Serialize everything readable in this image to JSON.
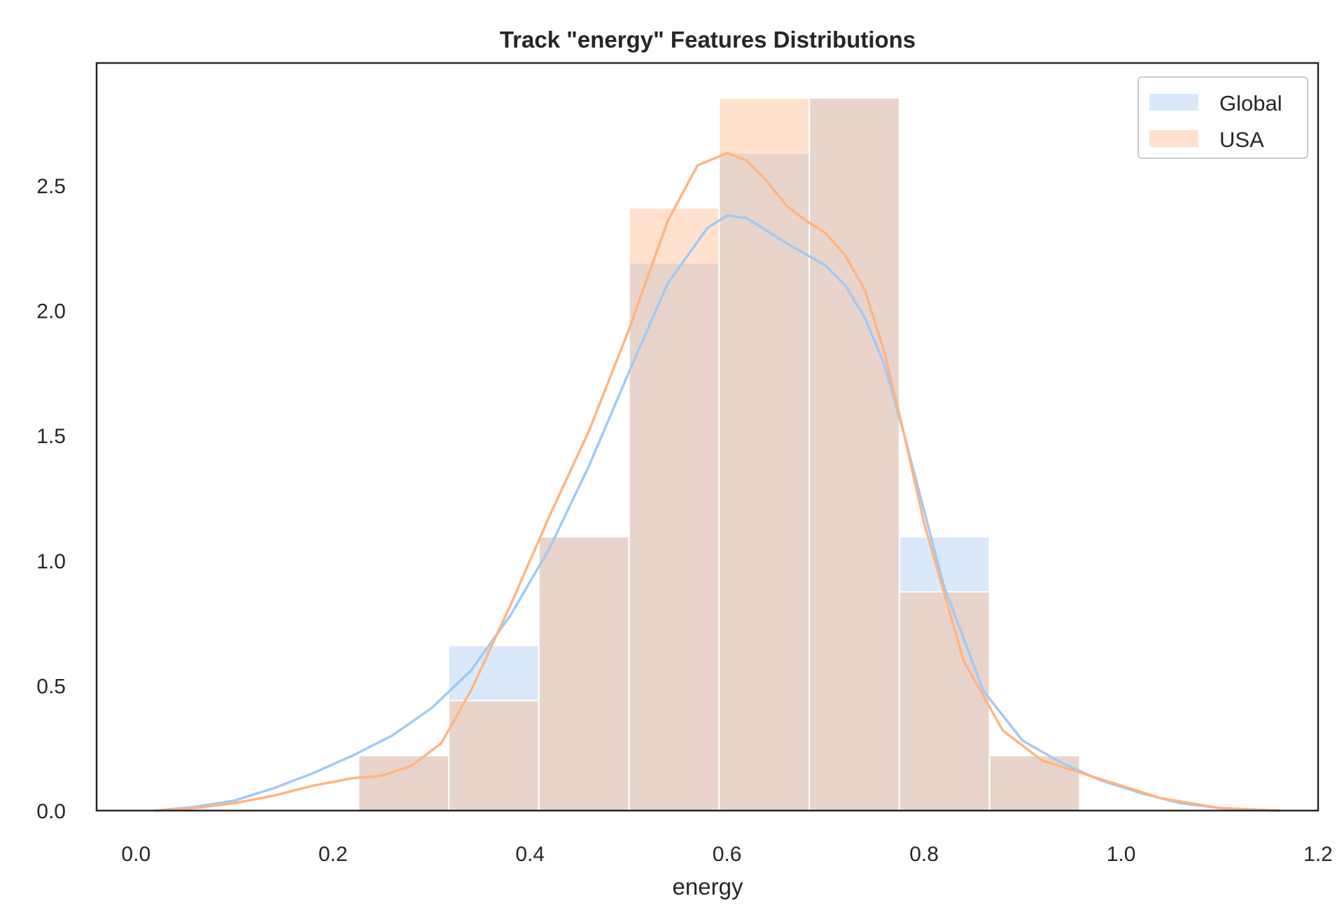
{
  "chart_data": {
    "type": "histogram",
    "title": "Track \"energy\" Features Distributions",
    "xlabel": "energy",
    "ylabel": "",
    "xlim": [
      -0.04,
      1.2
    ],
    "ylim": [
      0,
      2.99
    ],
    "x_ticks": [
      "0.0",
      "0.2",
      "0.4",
      "0.6",
      "0.8",
      "1.0",
      "1.2"
    ],
    "x_tick_values": [
      0.0,
      0.2,
      0.4,
      0.6,
      0.8,
      1.0,
      1.2
    ],
    "y_ticks": [
      "0.0",
      "0.5",
      "1.0",
      "1.5",
      "2.0",
      "2.5"
    ],
    "y_tick_values": [
      0.0,
      0.5,
      1.0,
      1.5,
      2.0,
      2.5
    ],
    "grid": false,
    "legend_position": "top-right",
    "bins": [
      0.226,
      0.3175,
      0.409,
      0.5005,
      0.592,
      0.6835,
      0.775,
      0.8665,
      0.958
    ],
    "series": [
      {
        "name": "Global",
        "color": "#a1c9f4",
        "values": [
          0.22,
          0.66,
          1.095,
          2.19,
          2.63,
          2.85,
          1.095,
          0.22
        ],
        "kde_x": [
          0.02,
          0.06,
          0.1,
          0.14,
          0.18,
          0.22,
          0.26,
          0.3,
          0.34,
          0.38,
          0.42,
          0.46,
          0.5,
          0.54,
          0.58,
          0.6,
          0.62,
          0.64,
          0.66,
          0.7,
          0.72,
          0.74,
          0.76,
          0.78,
          0.82,
          0.86,
          0.9,
          0.94,
          0.98,
          1.02,
          1.06,
          1.1,
          1.16
        ],
        "kde_y": [
          0.0,
          0.015,
          0.04,
          0.09,
          0.15,
          0.22,
          0.3,
          0.41,
          0.56,
          0.78,
          1.05,
          1.38,
          1.75,
          2.11,
          2.33,
          2.38,
          2.37,
          2.32,
          2.27,
          2.18,
          2.1,
          1.97,
          1.78,
          1.5,
          0.9,
          0.48,
          0.28,
          0.19,
          0.12,
          0.07,
          0.03,
          0.01,
          0.0
        ]
      },
      {
        "name": "USA",
        "color": "#ffb482",
        "values": [
          0.22,
          0.44,
          1.095,
          2.41,
          2.85,
          2.85,
          0.875,
          0.22
        ],
        "kde_x": [
          0.02,
          0.06,
          0.1,
          0.14,
          0.18,
          0.22,
          0.25,
          0.28,
          0.31,
          0.34,
          0.38,
          0.42,
          0.46,
          0.5,
          0.54,
          0.57,
          0.6,
          0.62,
          0.64,
          0.66,
          0.68,
          0.7,
          0.72,
          0.74,
          0.76,
          0.78,
          0.8,
          0.84,
          0.88,
          0.92,
          0.96,
          1.0,
          1.04,
          1.1,
          1.16
        ],
        "kde_y": [
          0.0,
          0.01,
          0.03,
          0.06,
          0.1,
          0.13,
          0.14,
          0.18,
          0.27,
          0.48,
          0.82,
          1.18,
          1.52,
          1.92,
          2.36,
          2.58,
          2.63,
          2.6,
          2.52,
          2.42,
          2.36,
          2.31,
          2.22,
          2.08,
          1.83,
          1.5,
          1.15,
          0.6,
          0.32,
          0.2,
          0.15,
          0.1,
          0.05,
          0.01,
          0.0
        ]
      }
    ]
  }
}
